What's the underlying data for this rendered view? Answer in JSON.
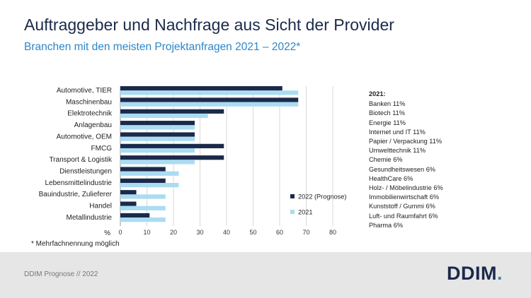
{
  "header": {
    "title": "Auftraggeber und Nachfrage aus Sicht der Provider",
    "subtitle": "Branchen mit den meisten Projektanfragen 2021 – 2022*"
  },
  "chart_data": {
    "type": "bar",
    "orientation": "horizontal",
    "categories": [
      "Automotive, TIER",
      "Maschinenbau",
      "Elektrotechnik",
      "Anlagenbau",
      "Automotive, OEM",
      "FMCG",
      "Transport & Logistik",
      "Dienstleistungen",
      "Lebensmittelindustrie",
      "Bauindustrie, Zulieferer",
      "Handel",
      "Metallindustrie"
    ],
    "series": [
      {
        "name": "2022 (Prognose)",
        "color": "#1b2a4a",
        "values": [
          61,
          67,
          39,
          28,
          28,
          39,
          39,
          17,
          17,
          6,
          6,
          11
        ]
      },
      {
        "name": "2021",
        "color": "#aadcf2",
        "values": [
          67,
          67,
          33,
          28,
          28,
          28,
          28,
          22,
          22,
          17,
          17,
          17
        ]
      }
    ],
    "xlabel": "%",
    "xlim": [
      0,
      80
    ],
    "xticks": [
      "0",
      "10",
      "20",
      "30",
      "40",
      "50",
      "60",
      "70",
      "80"
    ],
    "grid": true,
    "legend": "right"
  },
  "sidebar": {
    "heading": "2021:",
    "items": [
      "Banken 11%",
      "Biotech 11%",
      "Energie 11%",
      "Internet und IT 11%",
      "Papier / Verpackung 11%",
      "Umwelttechnik 11%",
      "Chemie 6%",
      "Gesundheitswesen 6%",
      "HealthCare 6%",
      "Holz- / Möbelindustrie 6%",
      "Immobilienwirtschaft 6%",
      "Kunststoff / Gummi 6%",
      "Luft- und Raumfahrt 6%",
      "Pharma 6%"
    ]
  },
  "footnote": "* Mehrfachnennung möglich",
  "footer": {
    "text": "DDIM Prognose // 2022",
    "logo_text": "DDIM",
    "logo_dot": "."
  }
}
